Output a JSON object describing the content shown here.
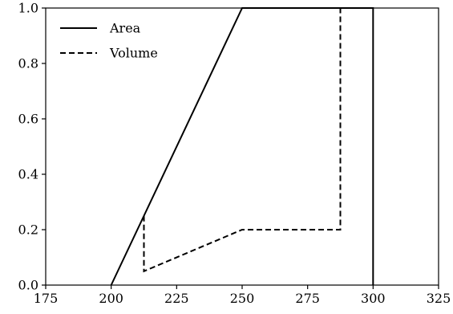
{
  "chart_data": {
    "type": "line",
    "title": "",
    "xlabel": "",
    "ylabel": "",
    "xlim": [
      175,
      325
    ],
    "ylim": [
      0,
      1.0
    ],
    "xticks": [
      175,
      200,
      225,
      250,
      275,
      300,
      325
    ],
    "yticks": [
      0.0,
      0.2,
      0.4,
      0.6,
      0.8,
      1.0
    ],
    "xtick_labels": [
      "175",
      "200",
      "225",
      "250",
      "275",
      "300",
      "325"
    ],
    "ytick_labels": [
      "0.0",
      "0.2",
      "0.4",
      "0.6",
      "0.8",
      "1.0"
    ],
    "grid": false,
    "legend": {
      "position": "top-left"
    },
    "series": [
      {
        "name": "Area",
        "style": "solid",
        "color": "#000000",
        "points": [
          [
            200,
            0.0
          ],
          [
            250,
            1.0
          ],
          [
            300,
            1.0
          ],
          [
            300,
            0.0
          ]
        ]
      },
      {
        "name": "Volume",
        "style": "dashed",
        "color": "#000000",
        "points": [
          [
            212.5,
            0.25
          ],
          [
            212.5,
            0.05
          ],
          [
            250,
            0.2
          ],
          [
            287.5,
            0.2
          ],
          [
            287.5,
            1.0
          ]
        ]
      }
    ]
  }
}
